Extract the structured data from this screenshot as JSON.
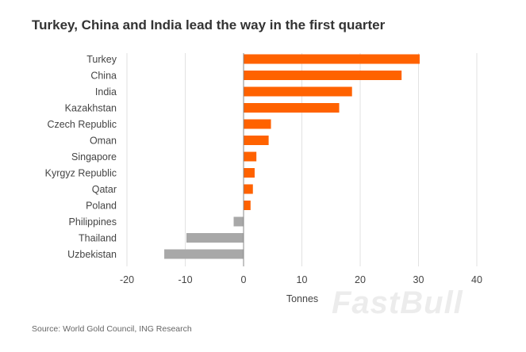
{
  "chart_data": {
    "type": "bar",
    "orientation": "horizontal",
    "title": "Turkey, China and India lead the way in the first quarter",
    "categories": [
      "Turkey",
      "China",
      "India",
      "Kazakhstan",
      "Czech Republic",
      "Oman",
      "Singapore",
      "Kyrgyz Republic",
      "Qatar",
      "Poland",
      "Philippines",
      "Thailand",
      "Uzbekistan"
    ],
    "values": [
      30.2,
      27.1,
      18.6,
      16.4,
      4.7,
      4.3,
      2.2,
      1.9,
      1.6,
      1.2,
      -1.7,
      -9.8,
      -13.6
    ],
    "xlabel": "Tonnes",
    "ylabel": "",
    "xlim": [
      -20,
      40
    ],
    "xticks": [
      -20,
      -10,
      0,
      10,
      20,
      30,
      40
    ],
    "xtick_labels": [
      "-20",
      "-10",
      "0",
      "10",
      "20",
      "30",
      "40"
    ],
    "grid": true,
    "colors": {
      "positive": "#ff6200",
      "negative": "#a8a8a8",
      "grid": "#e2e2e2",
      "zero_line": "#888888"
    }
  },
  "source": "Source: World Gold Council, ING Research",
  "watermark": "FastBull"
}
